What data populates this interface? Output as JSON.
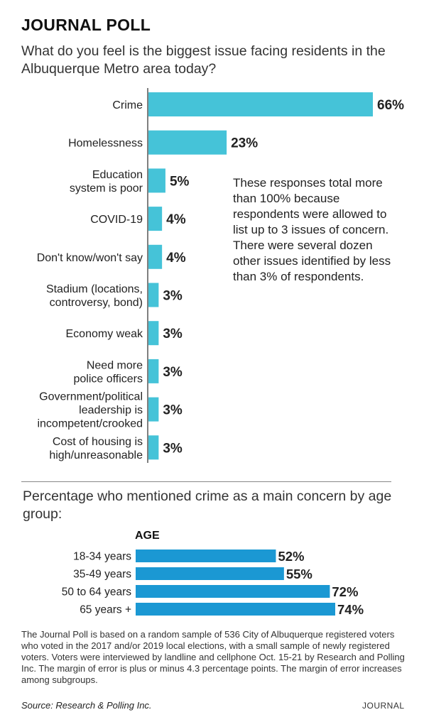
{
  "title": "JOURNAL POLL",
  "question": "What do you feel is the biggest issue facing residents in the Albuquerque Metro area today?",
  "note": "These responses total more than 100% because respondents were allowed to list up to 3 issues of concern. There were several dozen other issues identified by less than 3% of respondents.",
  "crime_question": "Percentage who mentioned crime as a main concern by age group:",
  "age_header": "AGE",
  "footnote": "The Journal Poll is based on a random sample of 536 City of Albuquerque registered voters who voted in the 2017 and/or 2019 local elections, with a small sample of newly registered voters. Voters were interviewed by landline and cellphone Oct. 15-21 by Research and Polling Inc. The margin of error is plus or minus 4.3 percentage points. The margin of error increases among subgroups.",
  "source": "Source: Research & Polling Inc.",
  "brand": "JOURNAL",
  "colors": {
    "issues_bar": "#45C3D8",
    "age_bar": "#1B98D3"
  },
  "chart_data": [
    {
      "type": "bar",
      "orientation": "horizontal",
      "categories": [
        "Crime",
        "Homelessness",
        "Education\nsystem is poor",
        "COVID-19",
        "Don't know/won't say",
        "Stadium (locations,\ncontroversy, bond)",
        "Economy weak",
        "Need more\npolice officers",
        "Government/political\nleadership is\nincompetent/crooked",
        "Cost of housing is\nhigh/unreasonable"
      ],
      "values": [
        66,
        23,
        5,
        4,
        4,
        3,
        3,
        3,
        3,
        3
      ],
      "value_labels": [
        "66%",
        "23%",
        "5%",
        "4%",
        "4%",
        "3%",
        "3%",
        "3%",
        "3%",
        "3%"
      ],
      "xlim": [
        0,
        66
      ]
    },
    {
      "type": "bar",
      "orientation": "horizontal",
      "categories": [
        "18-34 years",
        "35-49 years",
        "50 to 64 years",
        "65 years +"
      ],
      "values": [
        52,
        55,
        72,
        74
      ],
      "value_labels": [
        "52%",
        "55%",
        "72%",
        "74%"
      ],
      "xlim": [
        0,
        74
      ]
    }
  ]
}
